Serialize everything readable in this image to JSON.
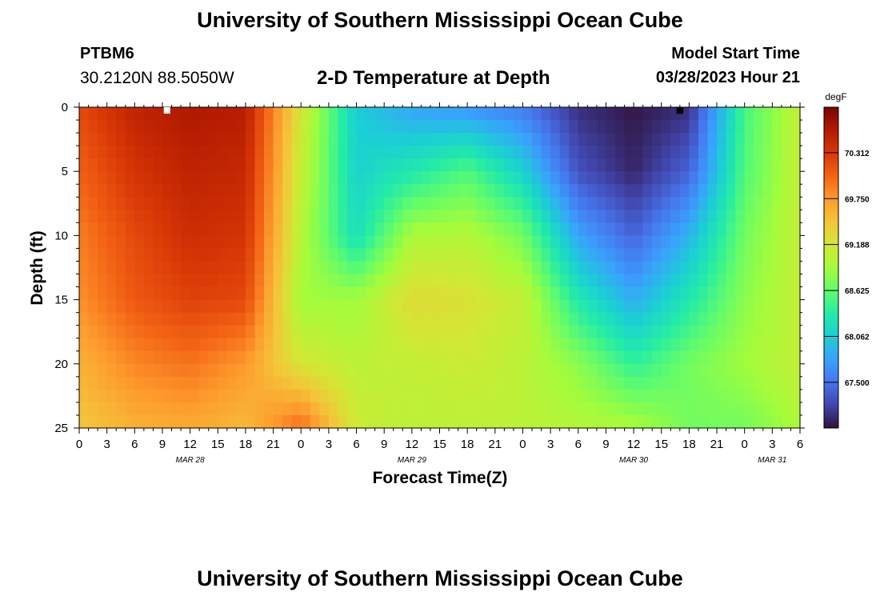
{
  "page": {
    "title_top": "University of Southern Mississippi Ocean Cube",
    "title_bottom": "University of Southern Mississippi Ocean Cube",
    "station_id": "PTBM6",
    "station_coords": "30.2120N  88.5050W",
    "subtitle": "2-D Temperature at Depth",
    "model_start_label": "Model Start Time",
    "model_start_value": "03/28/2023 Hour 21"
  },
  "colors": {
    "colormap": [
      "#30123b",
      "#4145ab",
      "#4675ed",
      "#39a2fc",
      "#1bcfd4",
      "#24eca6",
      "#61fc6c",
      "#a4fc3b",
      "#d1e834",
      "#f3c63a",
      "#fe9b2d",
      "#f36315",
      "#d93806",
      "#b11901",
      "#7a0402"
    ],
    "marker_left": "#ffffff",
    "marker_right": "#000000"
  },
  "chart_data": {
    "type": "heatmap",
    "title": "2-D Temperature at Depth",
    "xlabel": "Forecast Time(Z)",
    "ylabel": "Depth (ft)",
    "x_ticks": [
      "0",
      "3",
      "6",
      "9",
      "12",
      "15",
      "18",
      "21",
      "0",
      "3",
      "6",
      "9",
      "12",
      "15",
      "18",
      "21",
      "0",
      "3",
      "6",
      "9",
      "12",
      "15",
      "18",
      "21",
      "0",
      "3",
      "6"
    ],
    "x_hours_since_start": [
      0,
      3,
      6,
      9,
      12,
      15,
      18,
      21,
      24,
      27,
      30,
      33,
      36,
      39,
      42,
      45,
      48,
      51,
      54,
      57,
      60,
      63,
      66,
      69,
      72,
      75,
      78
    ],
    "date_labels": [
      {
        "label": "MAR 28",
        "hour": 12
      },
      {
        "label": "MAR 29",
        "hour": 36
      },
      {
        "label": "MAR 30",
        "hour": 60
      },
      {
        "label": "MAR 31",
        "hour": 75
      }
    ],
    "y_ticks": [
      0,
      5,
      10,
      15,
      20,
      25
    ],
    "ylim": [
      25,
      0
    ],
    "colorbar": {
      "unit": "degF",
      "ticks": [
        "70.312",
        "69.750",
        "69.188",
        "68.625",
        "68.062",
        "67.500"
      ],
      "tick_values": [
        70.312,
        69.75,
        69.188,
        68.625,
        68.062,
        67.5
      ],
      "vmin": 66.94,
      "vmax": 70.87
    },
    "markers": [
      {
        "name": "white-marker",
        "hour": 9.5,
        "depth": 0.2
      },
      {
        "name": "black-marker",
        "hour": 65,
        "depth": 0.2
      }
    ],
    "grid": {
      "hours": [
        0,
        6,
        12,
        18,
        24,
        30,
        36,
        42,
        48,
        54,
        60,
        66,
        72,
        78
      ],
      "depths": [
        0,
        5,
        10,
        15,
        20,
        25
      ],
      "values": [
        [
          70.2,
          70.5,
          70.6,
          70.55,
          69.2,
          68.05,
          67.8,
          67.7,
          67.55,
          67.1,
          66.97,
          67.1,
          68.5,
          69.1
        ],
        [
          70.05,
          70.35,
          70.5,
          70.45,
          69.1,
          68.1,
          68.3,
          68.55,
          68.1,
          67.3,
          67.05,
          67.4,
          68.55,
          69.1
        ],
        [
          69.9,
          70.2,
          70.4,
          70.35,
          69.0,
          68.2,
          68.95,
          69.0,
          68.7,
          67.8,
          67.4,
          67.9,
          68.7,
          69.1
        ],
        [
          69.8,
          70.1,
          70.25,
          70.2,
          68.9,
          68.9,
          69.3,
          69.25,
          69.1,
          68.3,
          67.85,
          68.3,
          68.8,
          69.1
        ],
        [
          69.6,
          69.85,
          69.95,
          69.75,
          69.2,
          69.05,
          69.1,
          69.15,
          69.05,
          68.8,
          68.4,
          68.7,
          68.9,
          69.1
        ],
        [
          69.45,
          69.6,
          69.65,
          69.55,
          70.0,
          69.15,
          69.05,
          69.05,
          69.05,
          69.0,
          68.95,
          68.7,
          68.7,
          68.95
        ]
      ]
    }
  }
}
